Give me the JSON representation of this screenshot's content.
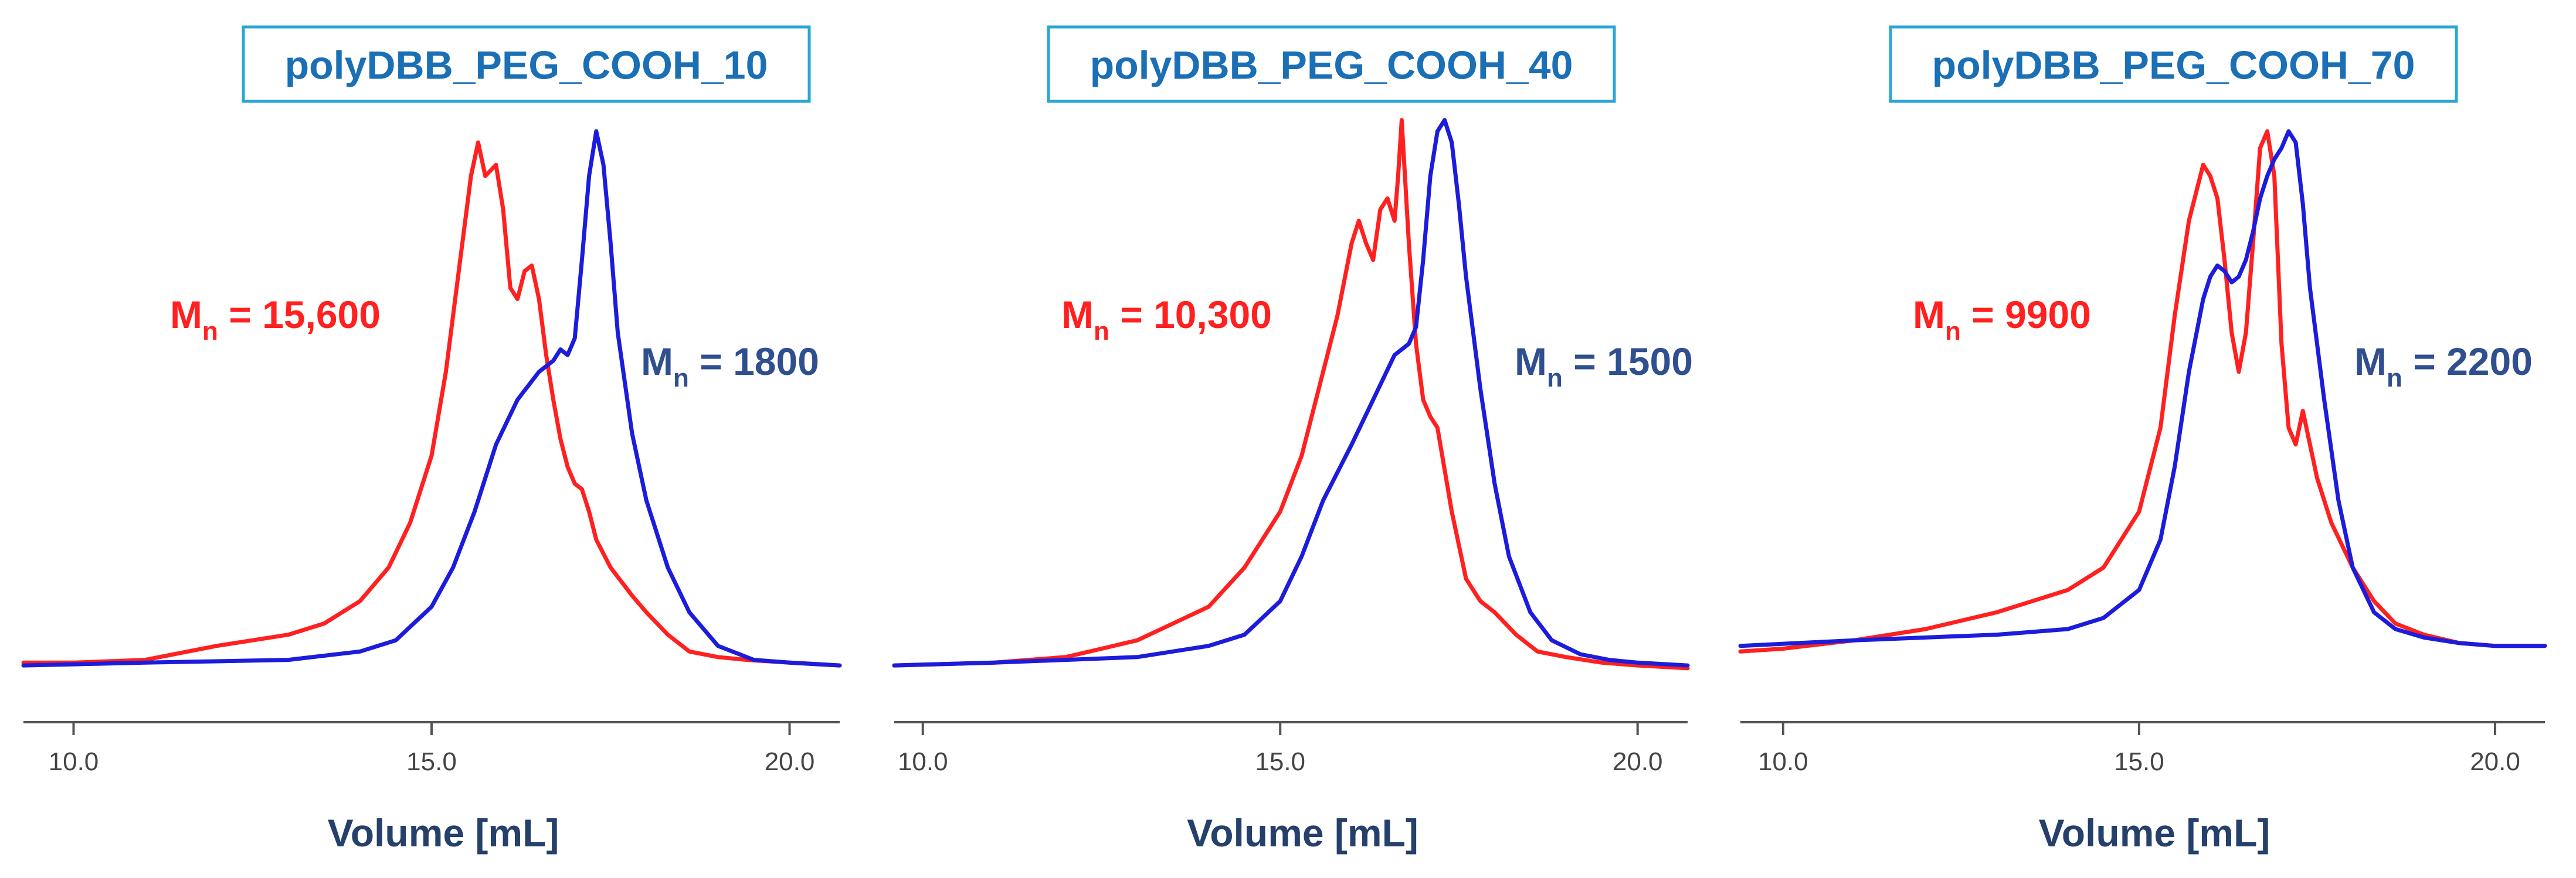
{
  "colors": {
    "red_series": "#ff2020",
    "blue_series": "#1c1cdc",
    "title_text": "#1a6fb5",
    "title_border": "#2aa6d6",
    "axis_label": "#24406b",
    "mn_blue": "#2f4f8f",
    "axis_line": "#555555",
    "tick_text": "#444444"
  },
  "chart_data": [
    {
      "type": "line",
      "title": "polyDBB_PEG_COOH_10",
      "xlabel": "Volume [mL]",
      "ylabel": "",
      "xlim": [
        9.3,
        20.7
      ],
      "xticks": [
        10.0,
        15.0,
        20.0
      ],
      "xtick_labels": [
        "10.0",
        "15.0",
        "20.0"
      ],
      "ylim": [
        0,
        1.0
      ],
      "annotations": [
        {
          "id": "red",
          "base": "M",
          "sub": "n",
          "rest": " = 15,600"
        },
        {
          "id": "blue",
          "base": "M",
          "sub": "n",
          "rest": " = 1800"
        }
      ],
      "series": [
        {
          "name": "red",
          "x": [
            9.3,
            10.0,
            11.0,
            12.0,
            12.5,
            13.0,
            13.5,
            14.0,
            14.4,
            14.7,
            15.0,
            15.2,
            15.4,
            15.55,
            15.65,
            15.75,
            15.9,
            16.0,
            16.1,
            16.2,
            16.3,
            16.4,
            16.5,
            16.6,
            16.7,
            16.8,
            16.9,
            17.0,
            17.1,
            17.2,
            17.3,
            17.5,
            17.8,
            18.0,
            18.3,
            18.6,
            19.0,
            19.4,
            20.0,
            20.7
          ],
          "y": [
            0.03,
            0.03,
            0.035,
            0.06,
            0.07,
            0.08,
            0.1,
            0.14,
            0.2,
            0.28,
            0.4,
            0.55,
            0.75,
            0.9,
            0.96,
            0.9,
            0.92,
            0.84,
            0.7,
            0.68,
            0.73,
            0.74,
            0.68,
            0.58,
            0.5,
            0.43,
            0.38,
            0.35,
            0.34,
            0.3,
            0.25,
            0.2,
            0.15,
            0.12,
            0.08,
            0.05,
            0.04,
            0.035,
            0.03,
            0.025
          ]
        },
        {
          "name": "blue",
          "x": [
            9.3,
            11.0,
            13.0,
            14.0,
            14.5,
            15.0,
            15.3,
            15.6,
            15.9,
            16.2,
            16.5,
            16.7,
            16.8,
            16.9,
            17.0,
            17.1,
            17.2,
            17.3,
            17.4,
            17.5,
            17.6,
            17.8,
            18.0,
            18.3,
            18.6,
            19.0,
            19.5,
            20.0,
            20.7
          ],
          "y": [
            0.025,
            0.03,
            0.035,
            0.05,
            0.07,
            0.13,
            0.2,
            0.3,
            0.42,
            0.5,
            0.55,
            0.57,
            0.59,
            0.58,
            0.61,
            0.75,
            0.9,
            0.98,
            0.92,
            0.78,
            0.62,
            0.44,
            0.32,
            0.2,
            0.12,
            0.06,
            0.035,
            0.03,
            0.025
          ]
        }
      ]
    },
    {
      "type": "line",
      "title": "polyDBB_PEG_COOH_40",
      "xlabel": "Volume [mL]",
      "ylabel": "",
      "xlim": [
        9.6,
        20.7
      ],
      "xticks": [
        10.0,
        15.0,
        20.0
      ],
      "xtick_labels": [
        "10.0",
        "15.0",
        "20.0"
      ],
      "ylim": [
        0,
        1.0
      ],
      "annotations": [
        {
          "id": "red",
          "base": "M",
          "sub": "n",
          "rest": " = 10,300"
        },
        {
          "id": "blue",
          "base": "M",
          "sub": "n",
          "rest": " = 1500"
        }
      ],
      "series": [
        {
          "name": "red",
          "x": [
            9.6,
            11.0,
            12.0,
            13.0,
            13.5,
            14.0,
            14.5,
            15.0,
            15.3,
            15.6,
            15.8,
            16.0,
            16.1,
            16.2,
            16.3,
            16.4,
            16.5,
            16.6,
            16.65,
            16.7,
            16.8,
            16.9,
            17.0,
            17.1,
            17.2,
            17.4,
            17.6,
            17.8,
            18.0,
            18.3,
            18.6,
            19.0,
            19.5,
            20.0,
            20.7
          ],
          "y": [
            0.025,
            0.03,
            0.04,
            0.07,
            0.1,
            0.13,
            0.2,
            0.3,
            0.4,
            0.55,
            0.65,
            0.78,
            0.82,
            0.78,
            0.75,
            0.84,
            0.86,
            0.82,
            0.9,
            1.0,
            0.78,
            0.6,
            0.5,
            0.47,
            0.45,
            0.3,
            0.18,
            0.14,
            0.12,
            0.08,
            0.05,
            0.04,
            0.03,
            0.025,
            0.02
          ]
        },
        {
          "name": "blue",
          "x": [
            9.6,
            11.0,
            13.0,
            14.0,
            14.5,
            15.0,
            15.3,
            15.6,
            16.0,
            16.3,
            16.6,
            16.8,
            16.9,
            17.0,
            17.1,
            17.2,
            17.3,
            17.4,
            17.5,
            17.6,
            17.8,
            18.0,
            18.2,
            18.5,
            18.8,
            19.2,
            19.6,
            20.0,
            20.7
          ],
          "y": [
            0.025,
            0.03,
            0.04,
            0.06,
            0.08,
            0.14,
            0.22,
            0.32,
            0.42,
            0.5,
            0.58,
            0.6,
            0.63,
            0.75,
            0.9,
            0.98,
            1.0,
            0.96,
            0.85,
            0.72,
            0.52,
            0.35,
            0.22,
            0.12,
            0.07,
            0.045,
            0.035,
            0.03,
            0.025
          ]
        }
      ]
    },
    {
      "type": "line",
      "title": "polyDBB_PEG_COOH_70",
      "xlabel": "Volume [mL]",
      "ylabel": "",
      "xlim": [
        9.4,
        20.7
      ],
      "xticks": [
        10.0,
        15.0,
        20.0
      ],
      "xtick_labels": [
        "10.0",
        "15.0",
        "20.0"
      ],
      "ylim": [
        0,
        1.0
      ],
      "annotations": [
        {
          "id": "red",
          "base": "M",
          "sub": "n",
          "rest": " = 9900"
        },
        {
          "id": "blue",
          "base": "M",
          "sub": "n",
          "rest": " = 2200"
        }
      ],
      "series": [
        {
          "name": "red",
          "x": [
            9.4,
            10.0,
            11.0,
            12.0,
            13.0,
            13.5,
            14.0,
            14.5,
            15.0,
            15.3,
            15.5,
            15.7,
            15.9,
            16.0,
            16.1,
            16.2,
            16.3,
            16.4,
            16.5,
            16.6,
            16.7,
            16.8,
            16.9,
            17.0,
            17.1,
            17.2,
            17.3,
            17.4,
            17.5,
            17.7,
            18.0,
            18.3,
            18.6,
            19.0,
            19.5,
            20.0,
            20.7
          ],
          "y": [
            0.05,
            0.055,
            0.07,
            0.09,
            0.12,
            0.14,
            0.16,
            0.2,
            0.3,
            0.45,
            0.65,
            0.82,
            0.92,
            0.9,
            0.86,
            0.75,
            0.62,
            0.55,
            0.62,
            0.78,
            0.95,
            0.98,
            0.9,
            0.6,
            0.45,
            0.42,
            0.48,
            0.42,
            0.36,
            0.28,
            0.2,
            0.14,
            0.1,
            0.08,
            0.065,
            0.06,
            0.06
          ]
        },
        {
          "name": "blue",
          "x": [
            9.4,
            11.0,
            13.0,
            14.0,
            14.5,
            15.0,
            15.3,
            15.5,
            15.7,
            15.9,
            16.0,
            16.1,
            16.2,
            16.3,
            16.4,
            16.5,
            16.6,
            16.7,
            16.8,
            16.9,
            17.0,
            17.1,
            17.2,
            17.3,
            17.4,
            17.6,
            17.8,
            18.0,
            18.3,
            18.6,
            19.0,
            19.5,
            20.0,
            20.7
          ],
          "y": [
            0.06,
            0.07,
            0.08,
            0.09,
            0.11,
            0.16,
            0.25,
            0.38,
            0.55,
            0.68,
            0.72,
            0.74,
            0.73,
            0.71,
            0.72,
            0.75,
            0.8,
            0.86,
            0.9,
            0.93,
            0.95,
            0.98,
            0.96,
            0.85,
            0.7,
            0.5,
            0.32,
            0.2,
            0.12,
            0.09,
            0.075,
            0.065,
            0.06,
            0.06
          ]
        }
      ]
    }
  ]
}
